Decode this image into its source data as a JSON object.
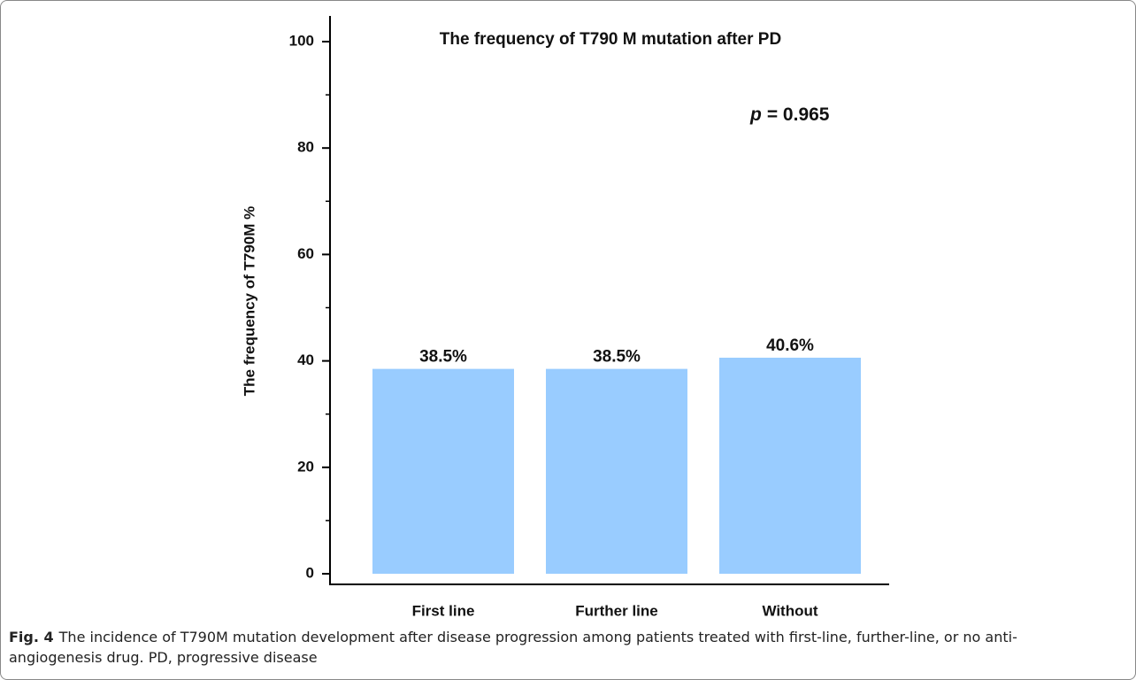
{
  "chart_data": {
    "type": "bar",
    "title": "The frequency of T790 M mutation after PD",
    "y_label": "The frequency of T790M %",
    "annotation": {
      "symbol": "p",
      "text": "= 0.965"
    },
    "categories": [
      "First line",
      "Further line",
      "Without"
    ],
    "values": [
      38.5,
      38.5,
      40.6
    ],
    "value_labels": [
      "38.5%",
      "38.5%",
      "40.6%"
    ],
    "color": "#99ccff",
    "ylim": [
      0,
      100
    ],
    "yticks": [
      0,
      20,
      40,
      60,
      80,
      100
    ],
    "yminorticks": [
      10,
      30,
      50,
      70,
      90
    ],
    "grid": false
  },
  "caption": {
    "label": "Fig. 4",
    "text": "The incidence of T790M mutation development after disease progression among patients treated with first-line, further-line, or no anti-angiogenesis drug. PD, progressive disease"
  }
}
